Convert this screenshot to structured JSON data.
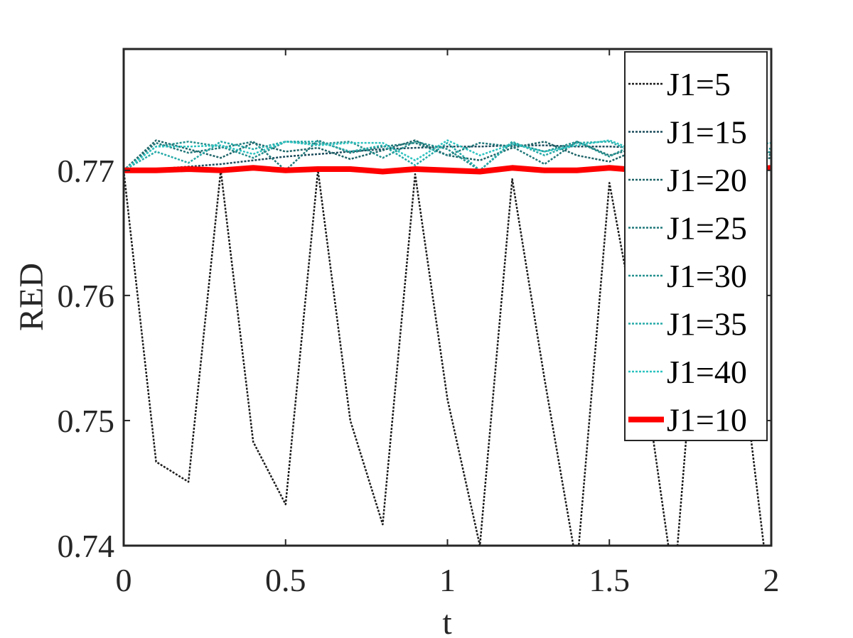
{
  "chart_data": {
    "type": "line",
    "title": "",
    "xlabel": "t",
    "ylabel": "RED",
    "xlim": [
      0,
      2
    ],
    "ylim": [
      0.74,
      0.7797
    ],
    "xticks": [
      0,
      0.5,
      1,
      1.5,
      2
    ],
    "xtick_labels": [
      "0",
      "0.5",
      "1",
      "1.5",
      "2"
    ],
    "yticks": [
      0.74,
      0.75,
      0.76,
      0.77
    ],
    "ytick_labels": [
      "0.74",
      "0.75",
      "0.76",
      "0.77"
    ],
    "grid": false,
    "legend_position": "top-right",
    "x": [
      0,
      0.1,
      0.2,
      0.3,
      0.4,
      0.5,
      0.6,
      0.7,
      0.8,
      0.9,
      1.0,
      1.1,
      1.2,
      1.3,
      1.4,
      1.5,
      1.6,
      1.7,
      1.8,
      1.9,
      2.0
    ],
    "series": [
      {
        "name": "J1=5",
        "color": "#1c1c1c",
        "width": 2.5,
        "dash": "3,2",
        "values": [
          0.77,
          0.7467,
          0.7451,
          0.77,
          0.7483,
          0.7433,
          0.77,
          0.75,
          0.7417,
          0.7697,
          0.7517,
          0.74,
          0.7693,
          0.7533,
          0.7383,
          0.769,
          0.755,
          0.7367,
          0.7687,
          0.7567,
          0.735
        ]
      },
      {
        "name": "J1=15",
        "color": "#1c4c5c",
        "width": 2.5,
        "dash": "3,2",
        "values": [
          0.77,
          0.7701,
          0.7703,
          0.7705,
          0.7708,
          0.7711,
          0.7713,
          0.7715,
          0.7717,
          0.7718,
          0.7719,
          0.7719,
          0.772,
          0.772,
          0.7719,
          0.7719,
          0.7718,
          0.7717,
          0.7716,
          0.7715,
          0.7714
        ]
      },
      {
        "name": "J1=20",
        "color": "#1f6468",
        "width": 2.5,
        "dash": "3,2",
        "values": [
          0.77,
          0.7724,
          0.7717,
          0.771,
          0.7722,
          0.7715,
          0.7718,
          0.7709,
          0.7716,
          0.7724,
          0.7712,
          0.7708,
          0.7718,
          0.7723,
          0.7712,
          0.7707,
          0.7718,
          0.7724,
          0.7713,
          0.7706,
          0.771
        ]
      },
      {
        "name": "J1=25",
        "color": "#21787a",
        "width": 2.5,
        "dash": "3,2",
        "values": [
          0.77,
          0.7722,
          0.7714,
          0.7718,
          0.7723,
          0.77,
          0.7724,
          0.7714,
          0.7719,
          0.7722,
          0.7712,
          0.7722,
          0.7719,
          0.7705,
          0.7723,
          0.7712,
          0.7719,
          0.7724,
          0.7712,
          0.772,
          0.7712
        ]
      },
      {
        "name": "J1=30",
        "color": "#24908e",
        "width": 2.5,
        "dash": "3,2",
        "values": [
          0.77,
          0.7719,
          0.7723,
          0.7719,
          0.771,
          0.7723,
          0.7721,
          0.7723,
          0.771,
          0.7723,
          0.7717,
          0.77,
          0.7722,
          0.7715,
          0.7723,
          0.7711,
          0.7724,
          0.7718,
          0.7712,
          0.7723,
          0.7714
        ]
      },
      {
        "name": "J1=35",
        "color": "#27aaa8",
        "width": 2.5,
        "dash": "3,2",
        "values": [
          0.77,
          0.7715,
          0.7706,
          0.7723,
          0.7717,
          0.7723,
          0.7723,
          0.7715,
          0.772,
          0.7704,
          0.7722,
          0.77,
          0.7723,
          0.7712,
          0.7722,
          0.7723,
          0.7712,
          0.7721,
          0.7722,
          0.7724,
          0.7717
        ]
      },
      {
        "name": "J1=40",
        "color": "#2cc3c0",
        "width": 2.5,
        "dash": "3,2",
        "values": [
          0.77,
          0.7719,
          0.7719,
          0.772,
          0.7713,
          0.7723,
          0.772,
          0.7722,
          0.7722,
          0.7708,
          0.7724,
          0.7712,
          0.7721,
          0.7715,
          0.772,
          0.7724,
          0.7714,
          0.772,
          0.7723,
          0.7719,
          0.7722
        ]
      },
      {
        "name": "J1=10",
        "color": "#ff0000",
        "width": 8,
        "dash": "",
        "values": [
          0.77,
          0.77,
          0.7701,
          0.77,
          0.7702,
          0.77,
          0.7701,
          0.7701,
          0.7699,
          0.7701,
          0.77,
          0.7699,
          0.7702,
          0.77,
          0.77,
          0.7702,
          0.77,
          0.77,
          0.7701,
          0.77,
          0.7702
        ]
      }
    ]
  }
}
